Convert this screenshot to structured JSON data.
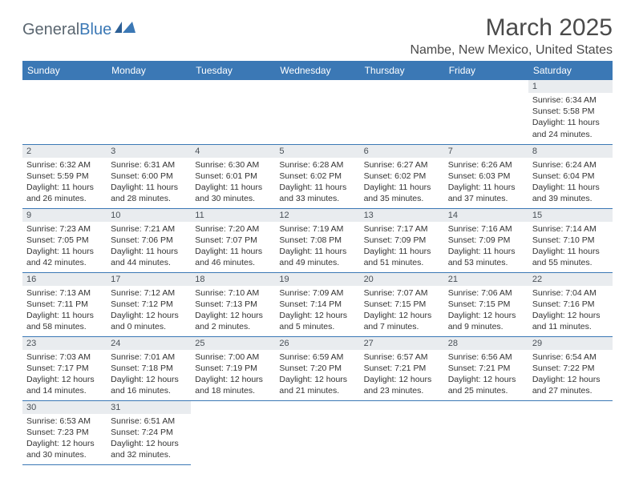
{
  "logo": {
    "general": "General",
    "blue": "Blue"
  },
  "title": "March 2025",
  "location": "Nambe, New Mexico, United States",
  "colors": {
    "header_bg": "#3b78b5",
    "header_text": "#ffffff",
    "daynum_bg": "#e9ecef",
    "daynum_text": "#495057",
    "border": "#3b78b5",
    "body_text": "#333333",
    "title_text": "#4a4a4a"
  },
  "weekdays": [
    "Sunday",
    "Monday",
    "Tuesday",
    "Wednesday",
    "Thursday",
    "Friday",
    "Saturday"
  ],
  "cells": [
    {
      "day": "",
      "lines": []
    },
    {
      "day": "",
      "lines": []
    },
    {
      "day": "",
      "lines": []
    },
    {
      "day": "",
      "lines": []
    },
    {
      "day": "",
      "lines": []
    },
    {
      "day": "",
      "lines": []
    },
    {
      "day": "1",
      "lines": [
        "Sunrise: 6:34 AM",
        "Sunset: 5:58 PM",
        "Daylight: 11 hours and 24 minutes."
      ]
    },
    {
      "day": "2",
      "lines": [
        "Sunrise: 6:32 AM",
        "Sunset: 5:59 PM",
        "Daylight: 11 hours and 26 minutes."
      ]
    },
    {
      "day": "3",
      "lines": [
        "Sunrise: 6:31 AM",
        "Sunset: 6:00 PM",
        "Daylight: 11 hours and 28 minutes."
      ]
    },
    {
      "day": "4",
      "lines": [
        "Sunrise: 6:30 AM",
        "Sunset: 6:01 PM",
        "Daylight: 11 hours and 30 minutes."
      ]
    },
    {
      "day": "5",
      "lines": [
        "Sunrise: 6:28 AM",
        "Sunset: 6:02 PM",
        "Daylight: 11 hours and 33 minutes."
      ]
    },
    {
      "day": "6",
      "lines": [
        "Sunrise: 6:27 AM",
        "Sunset: 6:02 PM",
        "Daylight: 11 hours and 35 minutes."
      ]
    },
    {
      "day": "7",
      "lines": [
        "Sunrise: 6:26 AM",
        "Sunset: 6:03 PM",
        "Daylight: 11 hours and 37 minutes."
      ]
    },
    {
      "day": "8",
      "lines": [
        "Sunrise: 6:24 AM",
        "Sunset: 6:04 PM",
        "Daylight: 11 hours and 39 minutes."
      ]
    },
    {
      "day": "9",
      "lines": [
        "Sunrise: 7:23 AM",
        "Sunset: 7:05 PM",
        "Daylight: 11 hours and 42 minutes."
      ]
    },
    {
      "day": "10",
      "lines": [
        "Sunrise: 7:21 AM",
        "Sunset: 7:06 PM",
        "Daylight: 11 hours and 44 minutes."
      ]
    },
    {
      "day": "11",
      "lines": [
        "Sunrise: 7:20 AM",
        "Sunset: 7:07 PM",
        "Daylight: 11 hours and 46 minutes."
      ]
    },
    {
      "day": "12",
      "lines": [
        "Sunrise: 7:19 AM",
        "Sunset: 7:08 PM",
        "Daylight: 11 hours and 49 minutes."
      ]
    },
    {
      "day": "13",
      "lines": [
        "Sunrise: 7:17 AM",
        "Sunset: 7:09 PM",
        "Daylight: 11 hours and 51 minutes."
      ]
    },
    {
      "day": "14",
      "lines": [
        "Sunrise: 7:16 AM",
        "Sunset: 7:09 PM",
        "Daylight: 11 hours and 53 minutes."
      ]
    },
    {
      "day": "15",
      "lines": [
        "Sunrise: 7:14 AM",
        "Sunset: 7:10 PM",
        "Daylight: 11 hours and 55 minutes."
      ]
    },
    {
      "day": "16",
      "lines": [
        "Sunrise: 7:13 AM",
        "Sunset: 7:11 PM",
        "Daylight: 11 hours and 58 minutes."
      ]
    },
    {
      "day": "17",
      "lines": [
        "Sunrise: 7:12 AM",
        "Sunset: 7:12 PM",
        "Daylight: 12 hours and 0 minutes."
      ]
    },
    {
      "day": "18",
      "lines": [
        "Sunrise: 7:10 AM",
        "Sunset: 7:13 PM",
        "Daylight: 12 hours and 2 minutes."
      ]
    },
    {
      "day": "19",
      "lines": [
        "Sunrise: 7:09 AM",
        "Sunset: 7:14 PM",
        "Daylight: 12 hours and 5 minutes."
      ]
    },
    {
      "day": "20",
      "lines": [
        "Sunrise: 7:07 AM",
        "Sunset: 7:15 PM",
        "Daylight: 12 hours and 7 minutes."
      ]
    },
    {
      "day": "21",
      "lines": [
        "Sunrise: 7:06 AM",
        "Sunset: 7:15 PM",
        "Daylight: 12 hours and 9 minutes."
      ]
    },
    {
      "day": "22",
      "lines": [
        "Sunrise: 7:04 AM",
        "Sunset: 7:16 PM",
        "Daylight: 12 hours and 11 minutes."
      ]
    },
    {
      "day": "23",
      "lines": [
        "Sunrise: 7:03 AM",
        "Sunset: 7:17 PM",
        "Daylight: 12 hours and 14 minutes."
      ]
    },
    {
      "day": "24",
      "lines": [
        "Sunrise: 7:01 AM",
        "Sunset: 7:18 PM",
        "Daylight: 12 hours and 16 minutes."
      ]
    },
    {
      "day": "25",
      "lines": [
        "Sunrise: 7:00 AM",
        "Sunset: 7:19 PM",
        "Daylight: 12 hours and 18 minutes."
      ]
    },
    {
      "day": "26",
      "lines": [
        "Sunrise: 6:59 AM",
        "Sunset: 7:20 PM",
        "Daylight: 12 hours and 21 minutes."
      ]
    },
    {
      "day": "27",
      "lines": [
        "Sunrise: 6:57 AM",
        "Sunset: 7:21 PM",
        "Daylight: 12 hours and 23 minutes."
      ]
    },
    {
      "day": "28",
      "lines": [
        "Sunrise: 6:56 AM",
        "Sunset: 7:21 PM",
        "Daylight: 12 hours and 25 minutes."
      ]
    },
    {
      "day": "29",
      "lines": [
        "Sunrise: 6:54 AM",
        "Sunset: 7:22 PM",
        "Daylight: 12 hours and 27 minutes."
      ]
    },
    {
      "day": "30",
      "lines": [
        "Sunrise: 6:53 AM",
        "Sunset: 7:23 PM",
        "Daylight: 12 hours and 30 minutes."
      ]
    },
    {
      "day": "31",
      "lines": [
        "Sunrise: 6:51 AM",
        "Sunset: 7:24 PM",
        "Daylight: 12 hours and 32 minutes."
      ]
    },
    {
      "day": "",
      "lines": []
    },
    {
      "day": "",
      "lines": []
    },
    {
      "day": "",
      "lines": []
    },
    {
      "day": "",
      "lines": []
    },
    {
      "day": "",
      "lines": []
    }
  ]
}
